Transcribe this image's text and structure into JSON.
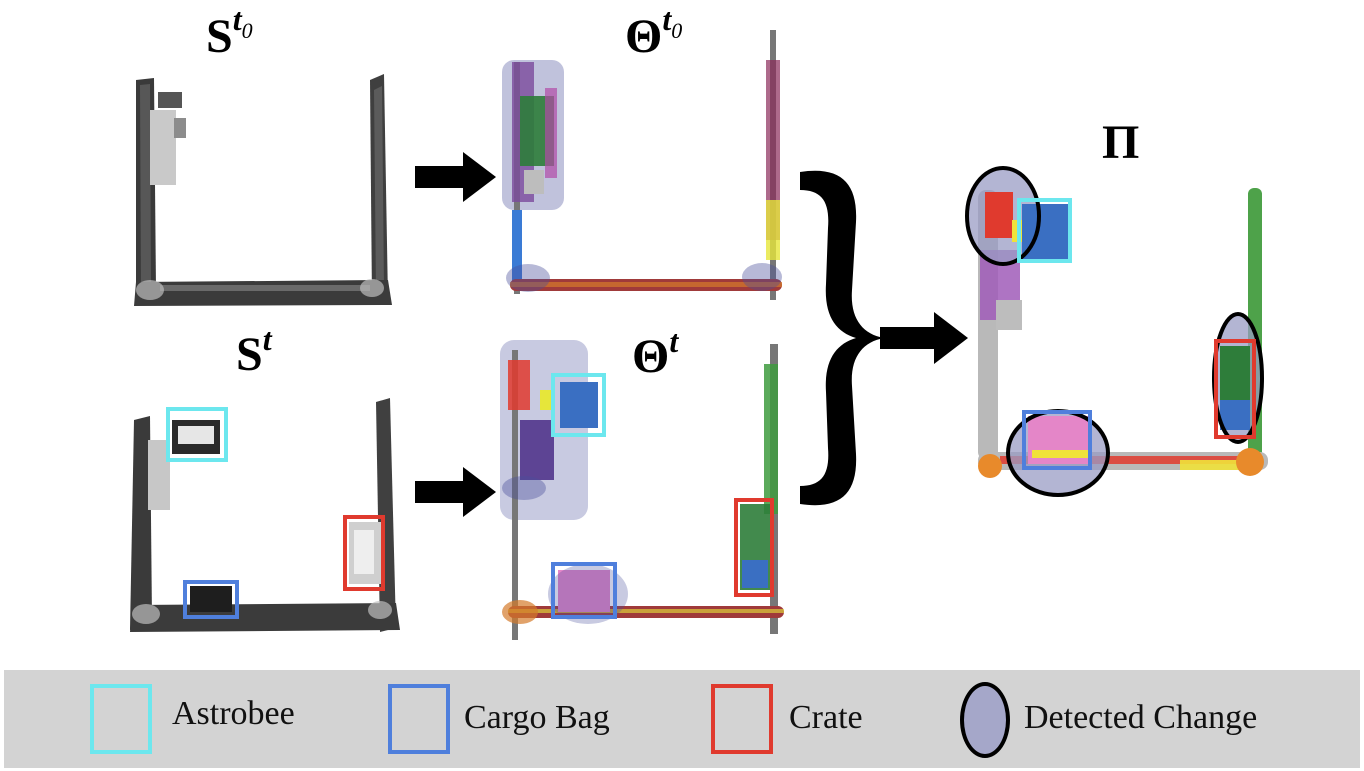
{
  "panels": {
    "scan_t0": {
      "base": "S",
      "sup": "t",
      "sub": "0"
    },
    "scan_t": {
      "base": "S",
      "sup": "t"
    },
    "theta_t0": {
      "base": "Θ",
      "sup": "t",
      "sub": "0"
    },
    "theta_t": {
      "base": "Θ",
      "sup": "t"
    },
    "result": {
      "base": "Π"
    }
  },
  "legend": {
    "items": [
      {
        "label": "Astrobee",
        "color": "#6ce7ee",
        "shape": "square"
      },
      {
        "label": "Cargo Bag",
        "color": "#4f7fdc",
        "shape": "square"
      },
      {
        "label": "Crate",
        "color": "#e03a2e",
        "shape": "square"
      },
      {
        "label": "Detected Change",
        "color": "#a5a7c9",
        "shape": "ellipse"
      }
    ]
  },
  "colors": {
    "astrobee": "#6ce7ee",
    "cargo_bag": "#4f7fdc",
    "crate": "#e03a2e",
    "change_fill": "#9a9cc4",
    "arrow": "#000000",
    "legend_bg": "#d3d3d3"
  }
}
